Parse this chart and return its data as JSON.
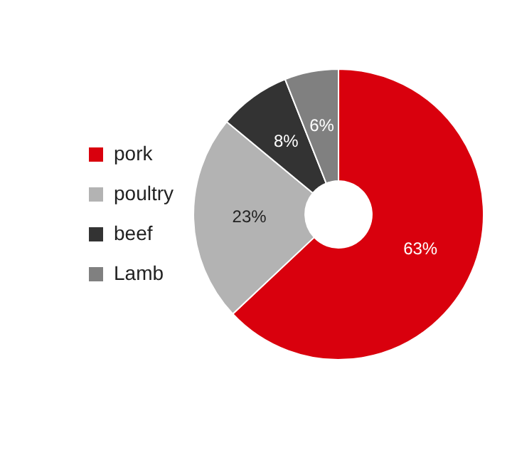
{
  "chart_data": {
    "type": "donut",
    "categories": [
      "pork",
      "poultry",
      "beef",
      "Lamb"
    ],
    "values": [
      63,
      23,
      8,
      6
    ],
    "colors": [
      "#d9000d",
      "#b3b3b3",
      "#333333",
      "#808080"
    ],
    "value_labels": [
      "63%",
      "23%",
      "8%",
      "6%"
    ],
    "legend": "left"
  }
}
